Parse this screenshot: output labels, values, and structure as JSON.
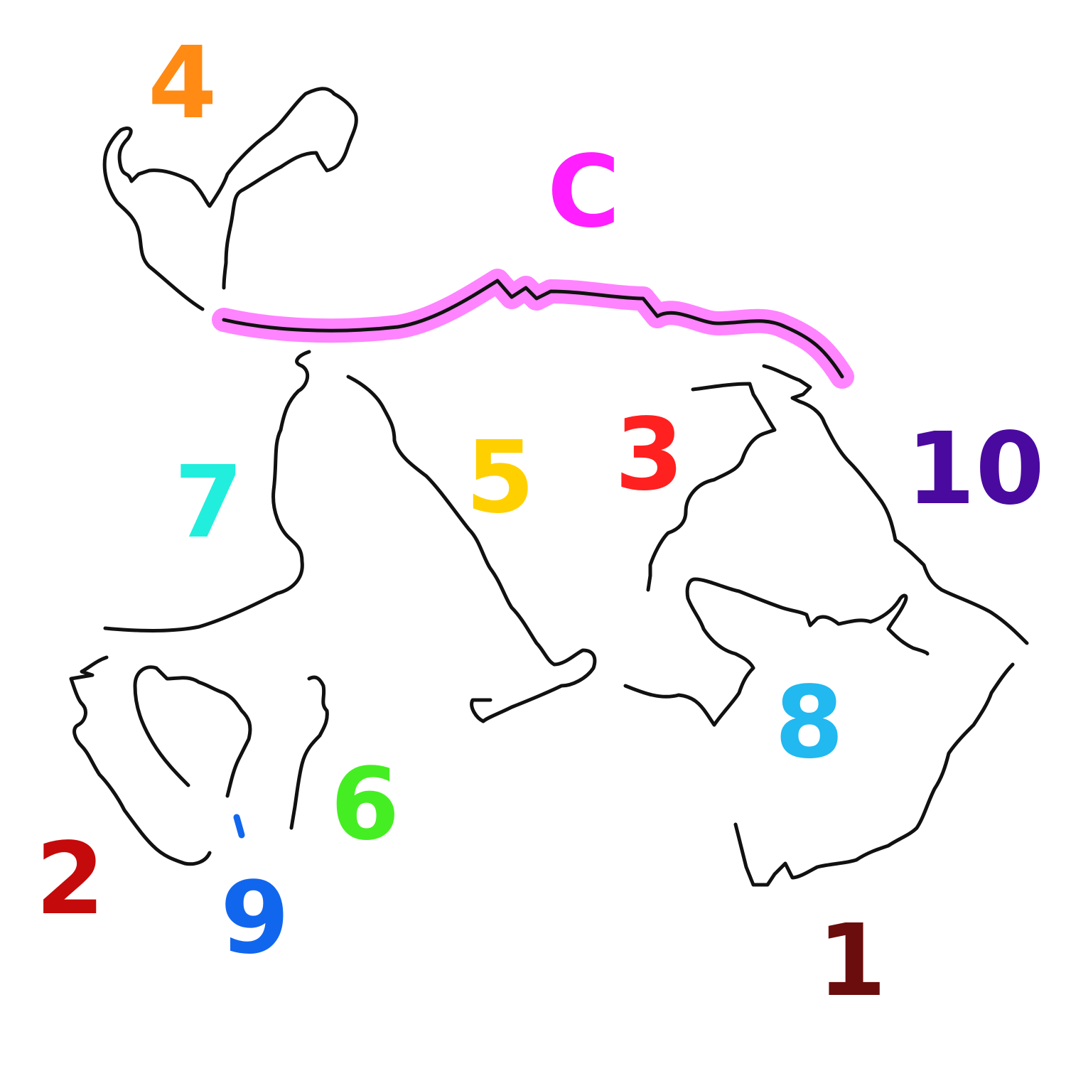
{
  "diagram": {
    "highlight_label": "C",
    "highlight_color": "#ff1fff",
    "labels": [
      {
        "id": "label-1",
        "text": "1",
        "color": "#6b0d0d"
      },
      {
        "id": "label-2",
        "text": "2",
        "color": "#c40a0a"
      },
      {
        "id": "label-3",
        "text": "3",
        "color": "#ff2020"
      },
      {
        "id": "label-4",
        "text": "4",
        "color": "#ff8a14"
      },
      {
        "id": "label-5",
        "text": "5",
        "color": "#ffd000"
      },
      {
        "id": "label-6",
        "text": "6",
        "color": "#44ee22"
      },
      {
        "id": "label-7",
        "text": "7",
        "color": "#22eedd"
      },
      {
        "id": "label-8",
        "text": "8",
        "color": "#22b8f0"
      },
      {
        "id": "label-9",
        "text": "9",
        "color": "#1166ee"
      },
      {
        "id": "label-10",
        "text": "10",
        "color": "#4a0aa0"
      }
    ]
  }
}
